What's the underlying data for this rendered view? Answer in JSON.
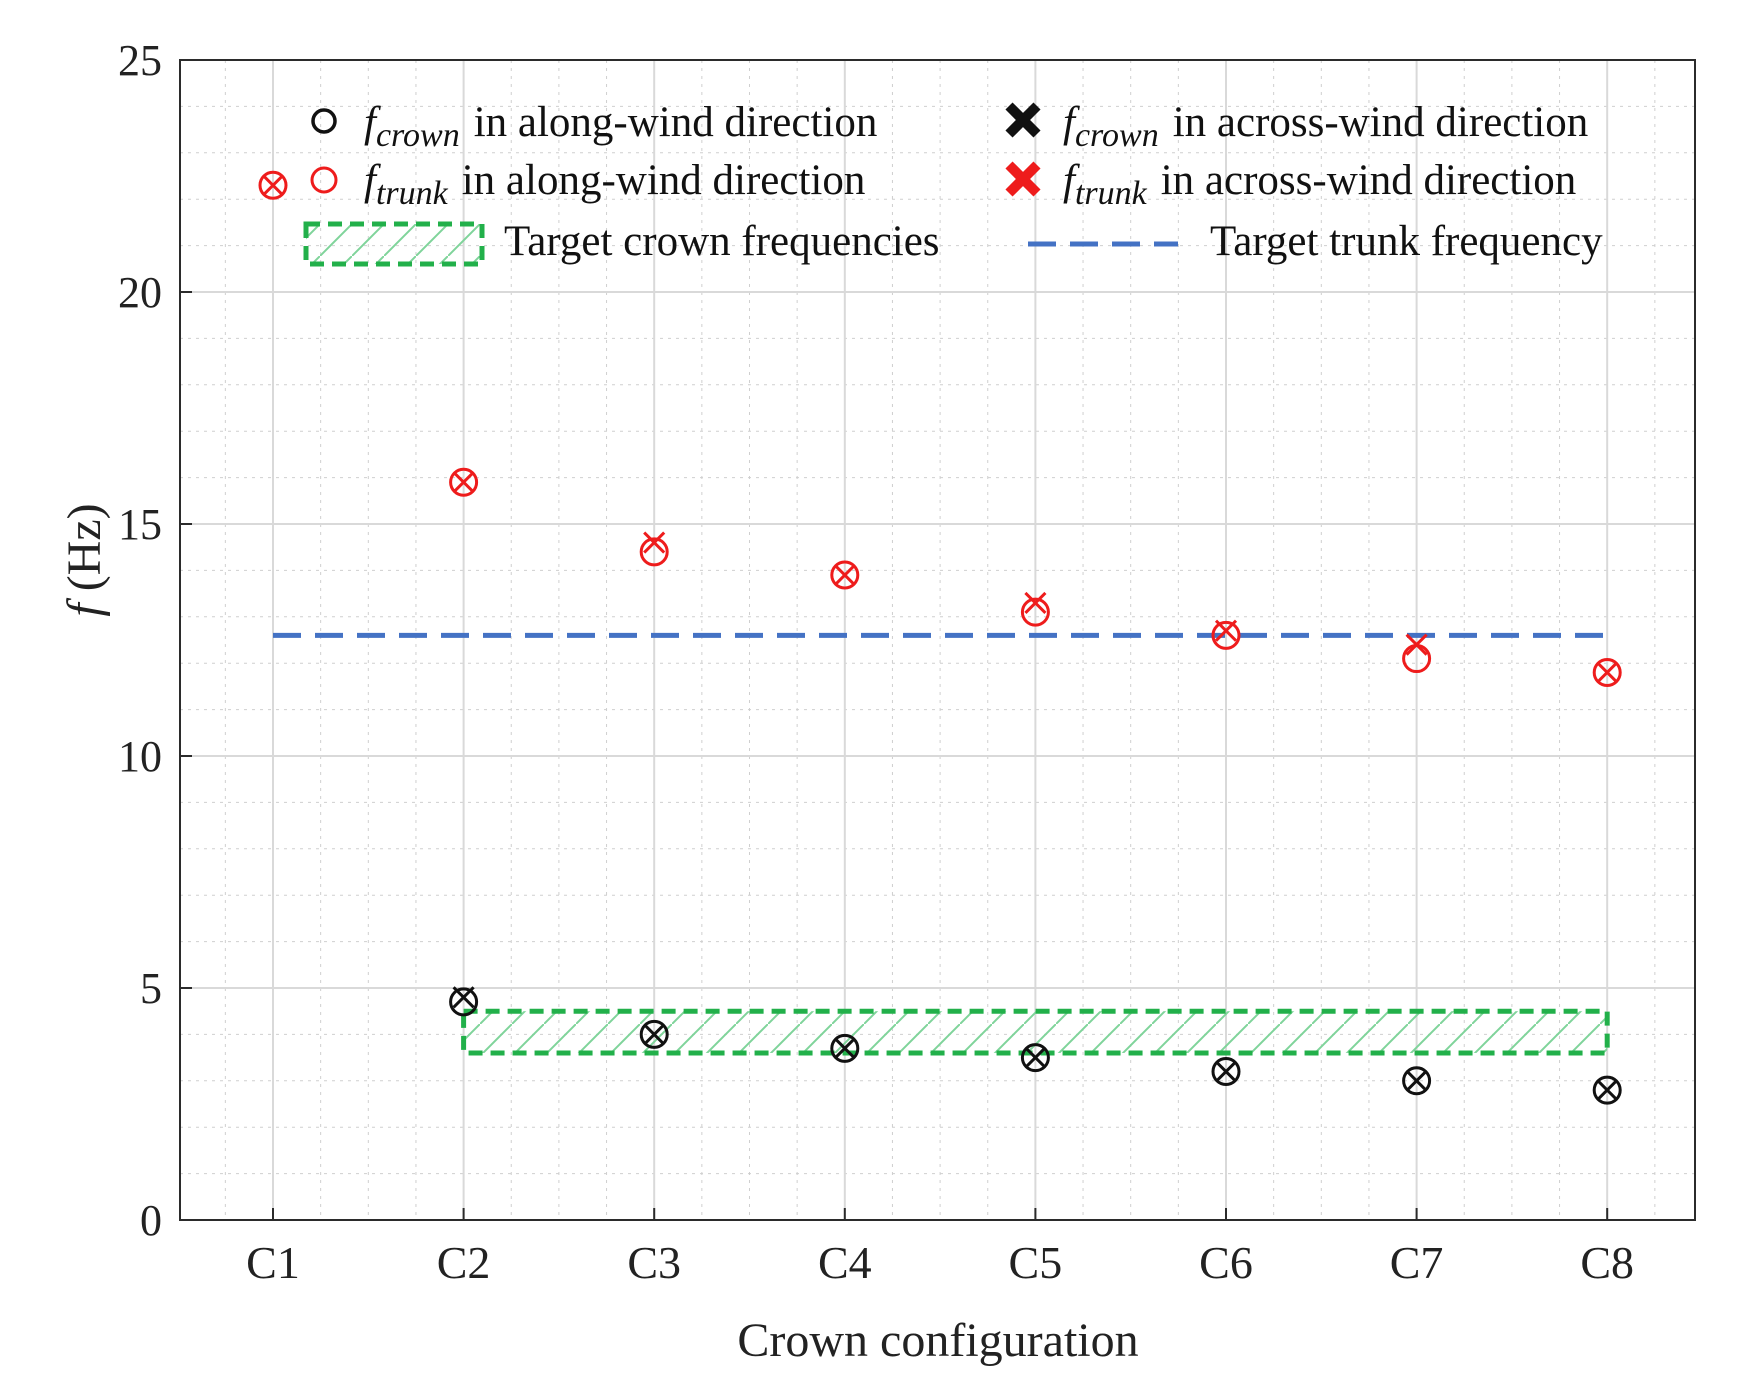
{
  "chart_data": {
    "type": "scatter",
    "title": "",
    "xlabel": "Crown configuration",
    "ylabel_symbol": "f",
    "ylabel_unit": "(Hz)",
    "categories": [
      "C1",
      "C2",
      "C3",
      "C4",
      "C5",
      "C6",
      "C7",
      "C8"
    ],
    "ylim": [
      0,
      25
    ],
    "yticks": [
      0,
      5,
      10,
      15,
      20,
      25
    ],
    "ytick_labels": [
      "0",
      "5",
      "10",
      "15",
      "20",
      "25"
    ],
    "y_minor_step": 1,
    "x_minor_divisions": 4,
    "grid": true,
    "legend_position": "top",
    "series": [
      {
        "name": "f_crown in along-wind direction",
        "marker": "circle",
        "color": "#111111",
        "values": [
          null,
          4.7,
          4.0,
          3.7,
          3.5,
          3.2,
          3.0,
          2.8
        ]
      },
      {
        "name": "f_crown in across-wind direction",
        "marker": "x",
        "color": "#111111",
        "values": [
          null,
          4.8,
          4.0,
          3.7,
          3.5,
          3.2,
          3.0,
          2.8
        ]
      },
      {
        "name": "f_trunk in along-wind direction",
        "marker": "circle",
        "color": "#ee1c1c",
        "values": [
          22.3,
          15.9,
          14.4,
          13.9,
          13.1,
          12.6,
          12.1,
          11.8
        ]
      },
      {
        "name": "f_trunk in across-wind direction",
        "marker": "x",
        "color": "#ee1c1c",
        "values": [
          22.3,
          15.9,
          14.6,
          13.9,
          13.3,
          12.7,
          12.4,
          11.8
        ]
      }
    ],
    "target_crown_band": {
      "x_from": "C2",
      "x_to": "C8",
      "y_min": 3.6,
      "y_max": 4.5,
      "color": "#22b04a"
    },
    "target_trunk_line": {
      "x_from": "C1",
      "x_to": "C8",
      "y": 12.6,
      "color": "#4472c4"
    },
    "legend": {
      "crown_along": {
        "symbol": "f",
        "sub": "crown",
        "text": "in along-wind direction"
      },
      "crown_across": {
        "symbol": "f",
        "sub": "crown",
        "text": "in across-wind direction"
      },
      "trunk_along": {
        "symbol": "f",
        "sub": "trunk",
        "text": "in along-wind direction"
      },
      "trunk_across": {
        "symbol": "f",
        "sub": "trunk",
        "text": "in across-wind direction"
      },
      "crown_band": "Target crown frequencies",
      "trunk_line": "Target trunk frequency"
    }
  }
}
